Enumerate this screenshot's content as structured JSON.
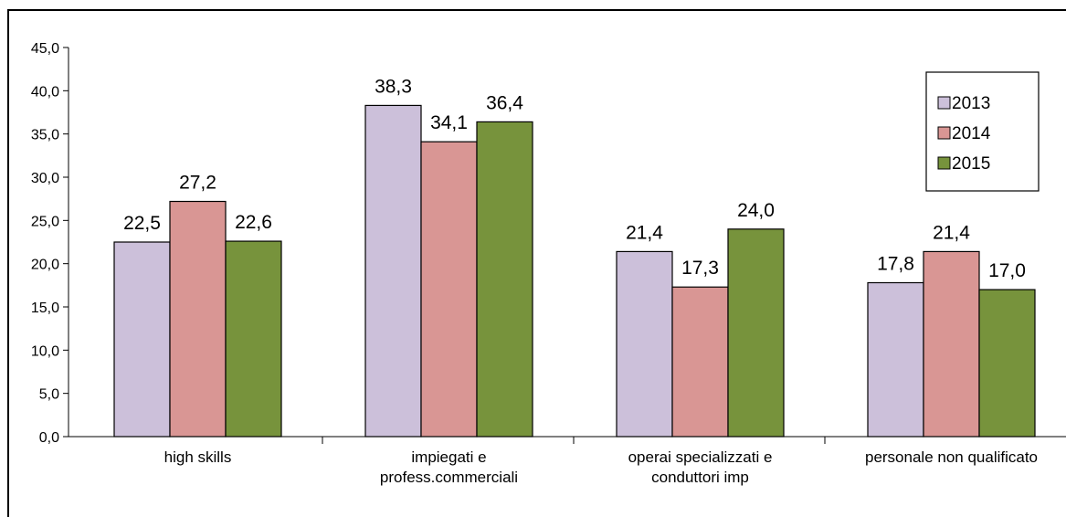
{
  "chart_data": {
    "type": "bar",
    "categories": [
      [
        "high skills"
      ],
      [
        "impiegati e",
        "profess.commerciali"
      ],
      [
        "operai specializzati e",
        "conduttori imp"
      ],
      [
        "personale non qualificato"
      ]
    ],
    "series": [
      {
        "name": "2013",
        "color": "#ccc0da",
        "values": [
          22.5,
          38.3,
          21.4,
          17.8
        ],
        "labels": [
          "22,5",
          "38,3",
          "21,4",
          "17,8"
        ]
      },
      {
        "name": "2014",
        "color": "#d99694",
        "values": [
          27.2,
          34.1,
          17.3,
          21.4
        ],
        "labels": [
          "27,2",
          "34,1",
          "17,3",
          "21,4"
        ]
      },
      {
        "name": "2015",
        "color": "#77933c",
        "values": [
          22.6,
          36.4,
          24.0,
          17.0
        ],
        "labels": [
          "22,6",
          "36,4",
          "24,0",
          "17,0"
        ]
      }
    ],
    "yticks": [
      "0,0",
      "5,0",
      "10,0",
      "15,0",
      "20,0",
      "25,0",
      "30,0",
      "35,0",
      "40,0",
      "45,0"
    ],
    "ylim": [
      0,
      45
    ],
    "ystep": 5,
    "legend_position": "top-right",
    "grid": false,
    "title": "",
    "xlabel": "",
    "ylabel": ""
  }
}
